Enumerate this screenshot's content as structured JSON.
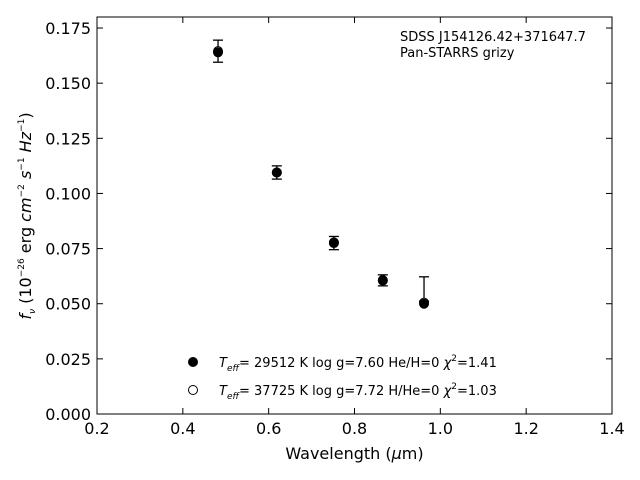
{
  "chart_data": {
    "type": "scatter",
    "xlabel": "Wavelength (μm)",
    "ylabel": "f_ν (10^-26 erg cm^-2 s^-1 Hz^-1)",
    "xlim": [
      0.2,
      1.4
    ],
    "ylim": [
      0.0,
      0.18
    ],
    "xticks": [
      "0.2",
      "0.4",
      "0.6",
      "0.8",
      "1.0",
      "1.2",
      "1.4"
    ],
    "yticks": [
      "0.000",
      "0.025",
      "0.050",
      "0.075",
      "0.100",
      "0.125",
      "0.150",
      "0.175"
    ],
    "grid": false,
    "annotation": [
      "SDSS J154126.42+371647.7",
      "Pan-STARRS grizy"
    ],
    "observed": {
      "x": [
        0.482,
        0.619,
        0.752,
        0.866,
        0.962
      ],
      "y": [
        0.1645,
        0.1095,
        0.0775,
        0.0606,
        0.0512
      ],
      "err_low": [
        0.005,
        0.003,
        0.003,
        0.0025,
        0.0
      ],
      "err_high": [
        0.005,
        0.003,
        0.003,
        0.0025,
        0.011
      ]
    },
    "series": [
      {
        "name": "Teff= 29512 K  log g=7.60  He/H=0  χ2=1.41",
        "marker": "filled-circle",
        "x": [
          0.482,
          0.619,
          0.752,
          0.866,
          0.962
        ],
        "y": [
          0.164,
          0.1095,
          0.0775,
          0.0605,
          0.05
        ]
      },
      {
        "name": "Teff= 37725 K  log g=7.72  H/He=0  χ2=1.03",
        "marker": "open-circle",
        "x": [
          0.482,
          0.619,
          0.752,
          0.866,
          0.962
        ],
        "y": [
          0.1645,
          0.1095,
          0.0778,
          0.0607,
          0.0505
        ]
      }
    ],
    "legend_position": "lower-center"
  }
}
